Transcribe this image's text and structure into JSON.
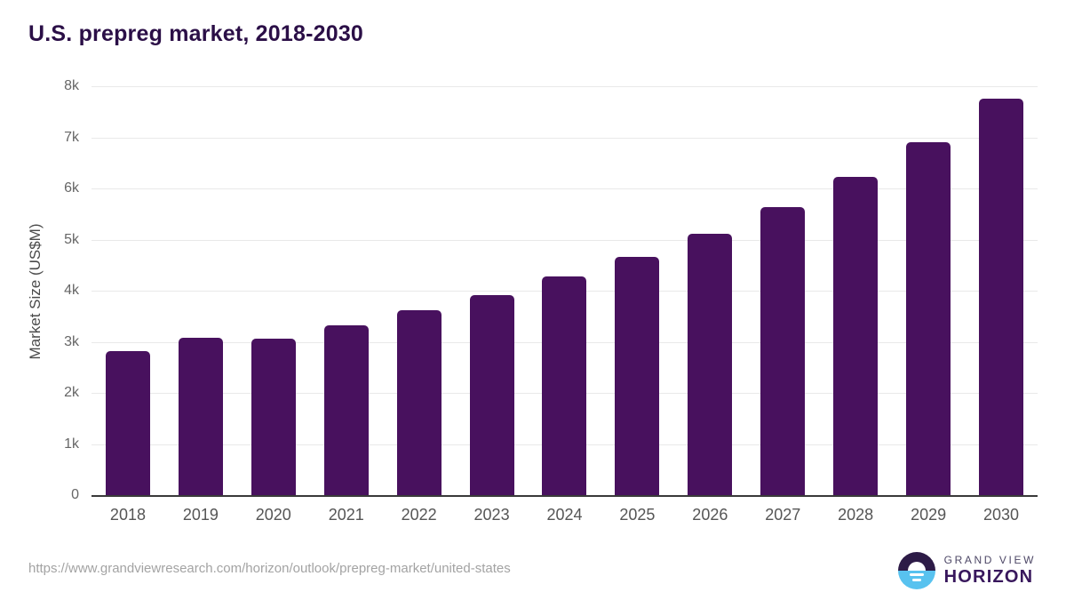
{
  "title": "U.S. prepreg market, 2018-2030",
  "source_url": "https://www.grandviewresearch.com/horizon/outlook/prepreg-market/united-states",
  "logo": {
    "line1": "GRAND VIEW",
    "line2": "HORIZON"
  },
  "colors": {
    "bar": "#48115e",
    "title": "#2b0f47",
    "grid": "#e9e9e9",
    "axis": "#3a3a3a",
    "tick_text": "#666666",
    "logo_blue": "#58c2ef",
    "logo_dark": "#2d1b47"
  },
  "chart_data": {
    "type": "bar",
    "title": "U.S. prepreg market, 2018-2030",
    "categories": [
      "2018",
      "2019",
      "2020",
      "2021",
      "2022",
      "2023",
      "2024",
      "2025",
      "2026",
      "2027",
      "2028",
      "2029",
      "2030"
    ],
    "values": [
      2820,
      3080,
      3060,
      3330,
      3610,
      3920,
      4270,
      4660,
      5120,
      5630,
      6230,
      6910,
      7750
    ],
    "xlabel": "",
    "ylabel": "Market Size (US$M)",
    "ylim": [
      0,
      8000
    ],
    "ytick_interval": 1000,
    "ytick_labels": [
      "0",
      "1k",
      "2k",
      "3k",
      "4k",
      "5k",
      "6k",
      "7k",
      "8k"
    ],
    "grid": true,
    "legend": "none"
  }
}
